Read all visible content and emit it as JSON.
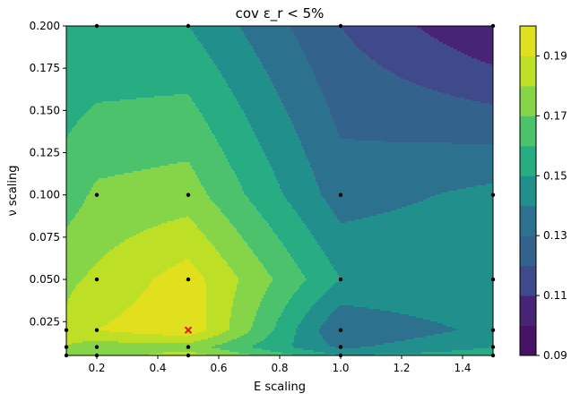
{
  "chart_data": {
    "type": "contour",
    "title": "cov ε_r < 5%",
    "xlabel": "E scaling",
    "ylabel": "ν scaling",
    "xlim": [
      0.1,
      1.5
    ],
    "ylim": [
      0.005,
      0.2
    ],
    "x_ticks": [
      0.2,
      0.4,
      0.6,
      0.8,
      1.0,
      1.2,
      1.4
    ],
    "x_tick_labels": [
      "0.2",
      "0.4",
      "0.6",
      "0.8",
      "1.0",
      "1.2",
      "1.4"
    ],
    "y_ticks": [
      0.025,
      0.05,
      0.075,
      0.1,
      0.125,
      0.15,
      0.175,
      0.2
    ],
    "y_tick_labels": [
      "0.025",
      "0.050",
      "0.075",
      "0.100",
      "0.125",
      "0.150",
      "0.175",
      "0.200"
    ],
    "colorbar": {
      "range": [
        0.09,
        0.2
      ],
      "levels": [
        0.09,
        0.1,
        0.11,
        0.12,
        0.13,
        0.14,
        0.15,
        0.16,
        0.17,
        0.18,
        0.19,
        0.2
      ],
      "ticks": [
        0.09,
        0.11,
        0.13,
        0.15,
        0.17,
        0.19
      ],
      "tick_labels": [
        "0.09",
        "0.11",
        "0.13",
        "0.15",
        "0.17",
        "0.19"
      ],
      "colors": [
        "#471365",
        "#482475",
        "#3e4a89",
        "#33638d",
        "#2c728e",
        "#21908d",
        "#27ad81",
        "#4cc26c",
        "#86d549",
        "#bddf26",
        "#e0e01e"
      ]
    },
    "grid_x": [
      0.1,
      0.2,
      0.5,
      1.0,
      1.5
    ],
    "grid_y": [
      0.005,
      0.01,
      0.02,
      0.05,
      0.1,
      0.2
    ],
    "z": [
      [
        0.18,
        0.175,
        0.185,
        0.15,
        0.155
      ],
      [
        0.18,
        0.175,
        0.175,
        0.138,
        0.15
      ],
      [
        0.182,
        0.19,
        0.198,
        0.13,
        0.143
      ],
      [
        0.178,
        0.182,
        0.195,
        0.15,
        0.15
      ],
      [
        0.165,
        0.172,
        0.175,
        0.135,
        0.143
      ],
      [
        0.15,
        0.15,
        0.15,
        0.12,
        0.1
      ]
    ],
    "sample_points": [
      [
        0.1,
        0.005
      ],
      [
        0.1,
        0.01
      ],
      [
        0.1,
        0.02
      ],
      [
        0.2,
        0.005
      ],
      [
        0.2,
        0.01
      ],
      [
        0.2,
        0.02
      ],
      [
        0.2,
        0.05
      ],
      [
        0.2,
        0.1
      ],
      [
        0.2,
        0.2
      ],
      [
        0.5,
        0.005
      ],
      [
        0.5,
        0.01
      ],
      [
        0.5,
        0.05
      ],
      [
        0.5,
        0.1
      ],
      [
        0.5,
        0.2
      ],
      [
        1.0,
        0.005
      ],
      [
        1.0,
        0.01
      ],
      [
        1.0,
        0.02
      ],
      [
        1.0,
        0.05
      ],
      [
        1.0,
        0.1
      ],
      [
        1.0,
        0.2
      ],
      [
        1.5,
        0.005
      ],
      [
        1.5,
        0.01
      ],
      [
        1.5,
        0.02
      ],
      [
        1.5,
        0.05
      ],
      [
        1.5,
        0.1
      ],
      [
        1.5,
        0.2
      ]
    ],
    "marker": {
      "x": 0.5,
      "y": 0.02,
      "color": "#e8141e",
      "symbol": "x"
    }
  }
}
